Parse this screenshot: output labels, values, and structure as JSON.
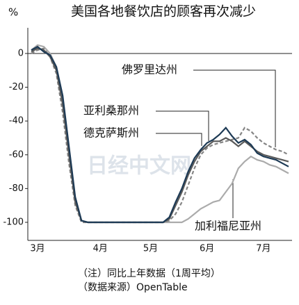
{
  "chart_data": {
    "type": "line",
    "title": "美国各地餐饮店的顾客再次减少",
    "y_label": "%",
    "categories": [
      null,
      "3月",
      null,
      null,
      null,
      null,
      null,
      null,
      null,
      null,
      null,
      "4月",
      null,
      null,
      null,
      null,
      null,
      null,
      null,
      "5月",
      null,
      null,
      null,
      null,
      null,
      null,
      null,
      null,
      "6月",
      null,
      null,
      null,
      null,
      null,
      null,
      null,
      null,
      "7月",
      null,
      null,
      null,
      null
    ],
    "series": [
      {
        "name": "佛罗里达州",
        "color": "#858585",
        "dash": "5,3",
        "values": [
          0,
          2,
          3,
          -2,
          -12,
          -35,
          -65,
          -90,
          -100,
          -100,
          -100,
          -100,
          -100,
          -100,
          -100,
          -100,
          -100,
          -100,
          -100,
          -100,
          -100,
          -100,
          -99,
          -95,
          -88,
          -78,
          -68,
          -60,
          -56,
          -54,
          -53,
          -52,
          -51,
          -50,
          -44,
          -46,
          -50,
          -53,
          -55,
          -57,
          -58,
          -60
        ]
      },
      {
        "name": "亚利桑那州",
        "color": "#1d3a55",
        "values": [
          2,
          4,
          1,
          -1,
          -8,
          -25,
          -55,
          -85,
          -99,
          -100,
          -100,
          -100,
          -100,
          -100,
          -100,
          -100,
          -100,
          -100,
          -100,
          -100,
          -100,
          -100,
          -97,
          -88,
          -80,
          -70,
          -62,
          -57,
          -53,
          -51,
          -48,
          -44,
          -49,
          -53,
          -51,
          -54,
          -59,
          -61,
          -62,
          -63,
          -65,
          -67
        ]
      },
      {
        "name": "德克萨斯州",
        "color": "#5a5a5a",
        "values": [
          1,
          3,
          2,
          -2,
          -10,
          -30,
          -60,
          -88,
          -99,
          -100,
          -100,
          -100,
          -100,
          -100,
          -100,
          -100,
          -100,
          -100,
          -100,
          -100,
          -100,
          -100,
          -98,
          -90,
          -82,
          -72,
          -64,
          -58,
          -55,
          -52,
          -52,
          -50,
          -52,
          -55,
          -52,
          -55,
          -58,
          -60,
          -61,
          -62,
          -63,
          -64
        ]
      },
      {
        "name": "加利福尼亚州",
        "color": "#ababab",
        "values": [
          2,
          5,
          4,
          0,
          -8,
          -28,
          -58,
          -87,
          -99,
          -100,
          -100,
          -100,
          -100,
          -100,
          -100,
          -100,
          -100,
          -100,
          -100,
          -100,
          -100,
          -100,
          -100,
          -100,
          -100,
          -98,
          -95,
          -92,
          -90,
          -88,
          -87,
          -82,
          -77,
          -68,
          -64,
          -61,
          -63,
          -64,
          -66,
          -67,
          -69,
          -71
        ]
      }
    ],
    "ylim": [
      -110,
      15
    ],
    "yticks": [
      0,
      -20,
      -40,
      -60,
      -80,
      -100
    ],
    "zero_line": true,
    "watermark": "日经中文网",
    "notes": [
      "（注）同比上年数据（1周平均）",
      "（数据来源）OpenTable"
    ]
  }
}
